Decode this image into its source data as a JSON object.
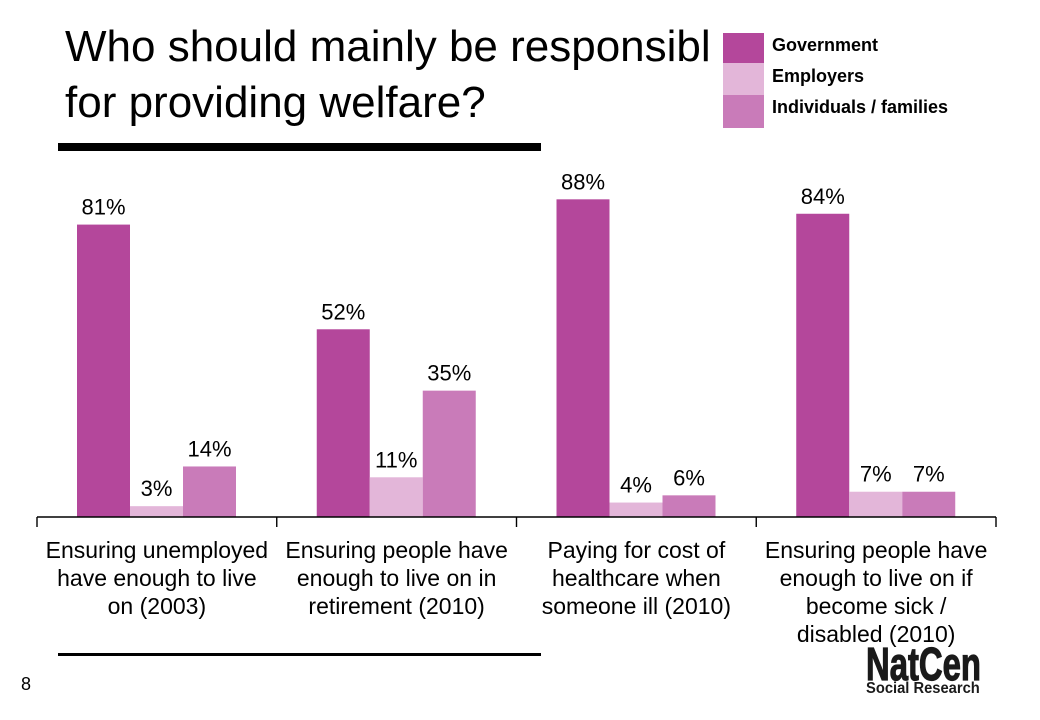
{
  "chart_data": {
    "type": "bar",
    "title": "Who should mainly be responsibl\nfor providing welfare?",
    "categories": [
      "Ensuring unemployed\nhave enough to live\non (2003)",
      "Ensuring people have\nenough to live on in\nretirement (2010)",
      "Paying for cost of\nhealthcare when\nsomeone ill (2010)",
      "Ensuring people have\nenough to live on if\nbecome sick /\ndisabled (2010)"
    ],
    "series": [
      {
        "name": "Government",
        "color": "#b4479b",
        "values": [
          81,
          52,
          88,
          84
        ]
      },
      {
        "name": "Employers",
        "color": "#e3b6d9",
        "values": [
          3,
          11,
          4,
          7
        ]
      },
      {
        "name": "Individuals / families",
        "color": "#c97bb9",
        "values": [
          14,
          35,
          6,
          7
        ]
      }
    ],
    "label_suffix": "%",
    "xlabel": "",
    "ylabel": "",
    "ylim": [
      0,
      100
    ],
    "grid": false,
    "legend": "top-right",
    "data_labels": true
  },
  "slide": {
    "page_number": "8",
    "logo": {
      "name": "NatCen",
      "tagline": "Social Research"
    }
  }
}
